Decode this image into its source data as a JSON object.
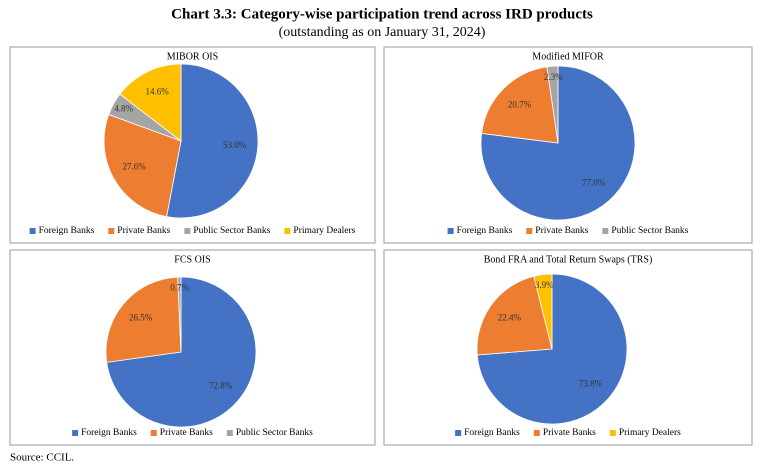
{
  "title": "Chart 3.3: Category-wise participation trend across IRD products",
  "subtitle": "(outstanding as on January 31, 2024)",
  "source": "Source: CCIL.",
  "chart_data": [
    {
      "type": "pie",
      "title": "MIBOR OIS",
      "categories": [
        "Foreign Banks",
        "Private Banks",
        "Public Sector Banks",
        "Primary Dealers"
      ],
      "values": [
        53.0,
        27.6,
        4.8,
        14.6
      ],
      "value_labels": [
        "53.0%",
        "27.6%",
        "4.8%",
        "14.6%"
      ],
      "colors": [
        "#4472c4",
        "#ed7d31",
        "#a5a5a5",
        "#ffc000"
      ]
    },
    {
      "type": "pie",
      "title": "Modified MIFOR",
      "categories": [
        "Foreign Banks",
        "Private Banks",
        "Public Sector Banks"
      ],
      "values": [
        77.0,
        20.7,
        2.3
      ],
      "value_labels": [
        "77.0%",
        "20.7%",
        "2.3%"
      ],
      "colors": [
        "#4472c4",
        "#ed7d31",
        "#a5a5a5"
      ]
    },
    {
      "type": "pie",
      "title": "FCS OIS",
      "categories": [
        "Foreign Banks",
        "Private Banks",
        "Public Sector Banks"
      ],
      "values": [
        72.8,
        26.5,
        0.7
      ],
      "value_labels": [
        "72.8%",
        "26.5%",
        "0.7%"
      ],
      "colors": [
        "#4472c4",
        "#ed7d31",
        "#a5a5a5"
      ]
    },
    {
      "type": "pie",
      "title": "Bond FRA and Total Return Swaps (TRS)",
      "categories": [
        "Foreign Banks",
        "Private Banks",
        "Primary Dealers"
      ],
      "values": [
        73.8,
        22.4,
        3.9
      ],
      "value_labels": [
        "73.8%",
        "22.4%",
        "3.9%"
      ],
      "colors": [
        "#4472c4",
        "#ed7d31",
        "#ffc000"
      ]
    }
  ]
}
